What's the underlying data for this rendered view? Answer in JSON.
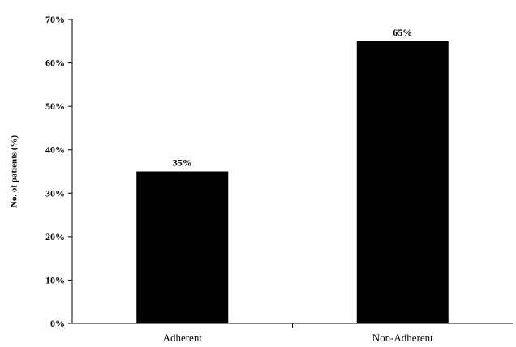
{
  "chart_data": {
    "type": "bar",
    "categories": [
      "Adherent",
      "Non-Adherent"
    ],
    "values": [
      35,
      65
    ],
    "data_labels": [
      "35%",
      "65%"
    ],
    "title": "",
    "xlabel": "",
    "ylabel": "No. of patients (%)",
    "ylim": [
      0,
      70
    ],
    "yticks": [
      0,
      10,
      20,
      30,
      40,
      50,
      60,
      70
    ],
    "ytick_labels": [
      "0%",
      "10%",
      "20%",
      "30%",
      "40%",
      "50%",
      "60%",
      "70%"
    ],
    "bar_color": "#000000",
    "grid": false,
    "legend": "none"
  }
}
